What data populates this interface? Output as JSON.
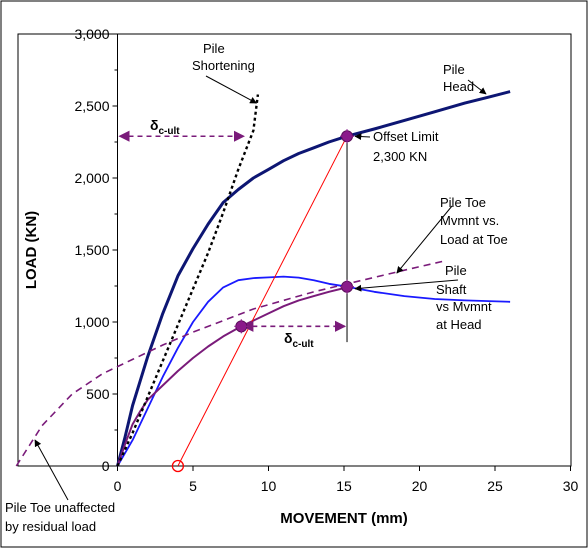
{
  "chart_data": {
    "type": "line",
    "xlabel": "MOVEMENT  (mm)",
    "ylabel": "LOAD  (KN)",
    "xlim": [
      -7,
      30
    ],
    "ylim": [
      0,
      3000
    ],
    "xticks": [
      0,
      5,
      10,
      15,
      20,
      25,
      30
    ],
    "xtick_labels": [
      "0",
      "5",
      "10",
      "15",
      "20",
      "25",
      "30"
    ],
    "yticks": [
      0,
      500,
      1000,
      1500,
      2000,
      2500,
      3000
    ],
    "ytick_labels": [
      "0",
      "500",
      "1,000",
      "1,500",
      "2,000",
      "2,500",
      "3,000"
    ],
    "grid": false,
    "colors": {
      "pile_head": "#0d1673",
      "pile_shaft": "#1a1aff",
      "pile_toe": "#7a1b7a",
      "shortening": "#000000",
      "offset_line": "#ff0000",
      "markers": "#8b1a8b"
    },
    "series": [
      {
        "key": "pile_head",
        "values": [
          [
            0,
            0
          ],
          [
            0.5,
            200
          ],
          [
            1,
            420
          ],
          [
            2,
            760
          ],
          [
            3,
            1060
          ],
          [
            4,
            1320
          ],
          [
            5,
            1510
          ],
          [
            6,
            1680
          ],
          [
            7,
            1830
          ],
          [
            8,
            1920
          ],
          [
            9,
            2000
          ],
          [
            10,
            2060
          ],
          [
            11,
            2120
          ],
          [
            12,
            2170
          ],
          [
            13,
            2210
          ],
          [
            14,
            2250
          ],
          [
            15.2,
            2290
          ],
          [
            17,
            2340
          ],
          [
            19,
            2400
          ],
          [
            21,
            2460
          ],
          [
            23,
            2520
          ],
          [
            24.5,
            2560
          ],
          [
            26,
            2600
          ]
        ]
      },
      {
        "key": "pile_shaft",
        "values": [
          [
            0,
            0
          ],
          [
            1,
            180
          ],
          [
            2,
            400
          ],
          [
            3,
            620
          ],
          [
            4,
            820
          ],
          [
            5,
            1000
          ],
          [
            6,
            1140
          ],
          [
            7,
            1240
          ],
          [
            8,
            1290
          ],
          [
            9,
            1305
          ],
          [
            10,
            1310
          ],
          [
            11,
            1315
          ],
          [
            12,
            1308
          ],
          [
            13,
            1290
          ],
          [
            14,
            1265
          ],
          [
            15.2,
            1245
          ],
          [
            17,
            1210
          ],
          [
            19,
            1180
          ],
          [
            21,
            1160
          ],
          [
            23,
            1150
          ],
          [
            26,
            1140
          ]
        ]
      },
      {
        "key": "pile_toe_head",
        "values": [
          [
            0,
            0
          ],
          [
            0.5,
            150
          ],
          [
            1,
            290
          ],
          [
            1.5,
            380
          ],
          [
            2,
            460
          ],
          [
            3,
            560
          ],
          [
            4,
            660
          ],
          [
            5,
            750
          ],
          [
            6,
            830
          ],
          [
            7,
            900
          ],
          [
            8.2,
            970
          ],
          [
            9,
            1010
          ],
          [
            10,
            1060
          ],
          [
            11,
            1110
          ],
          [
            12,
            1150
          ],
          [
            13,
            1180
          ],
          [
            14,
            1210
          ],
          [
            15.2,
            1240
          ]
        ]
      },
      {
        "key": "pile_toe_load_dashed",
        "values": [
          [
            -6.7,
            0
          ],
          [
            -5,
            280
          ],
          [
            -3,
            500
          ],
          [
            -1,
            640
          ],
          [
            1,
            740
          ],
          [
            3,
            840
          ],
          [
            5,
            930
          ],
          [
            7,
            1010
          ],
          [
            9,
            1090
          ],
          [
            11,
            1150
          ],
          [
            13,
            1210
          ],
          [
            15,
            1260
          ],
          [
            17,
            1310
          ],
          [
            19,
            1360
          ],
          [
            21.5,
            1420
          ]
        ]
      },
      {
        "key": "shortening_dotted",
        "values": [
          [
            0,
            0
          ],
          [
            1,
            230
          ],
          [
            2,
            480
          ],
          [
            3,
            730
          ],
          [
            4,
            980
          ],
          [
            5,
            1230
          ],
          [
            6,
            1480
          ],
          [
            7,
            1760
          ],
          [
            8,
            2060
          ],
          [
            9,
            2330
          ],
          [
            9.3,
            2580
          ]
        ]
      },
      {
        "key": "offset_line",
        "values": [
          [
            4,
            0
          ],
          [
            15.2,
            2290
          ]
        ]
      }
    ],
    "vertical_line": {
      "x": 15.2,
      "y_from": 860,
      "y_to": 2290
    },
    "markers": [
      [
        15.2,
        2290
      ],
      [
        15.2,
        1245
      ],
      [
        8.2,
        970
      ]
    ],
    "open_marker": [
      4,
      0
    ],
    "delta_arrows": [
      {
        "x_from": 0,
        "x_to": 8.5,
        "y": 2290
      },
      {
        "x_from": 8.2,
        "x_to": 15.2,
        "y": 970
      }
    ],
    "annotations": {
      "pile_shortening": [
        "Pile",
        "Shortening"
      ],
      "pile_head": [
        "Pile",
        "Head"
      ],
      "offset_limit": [
        "Offset Limit",
        "2,300 KN"
      ],
      "pile_toe_mvmnt": [
        "Pile Toe",
        "Mvmnt vs.",
        "Load at Toe"
      ],
      "pile_shaft": [
        "Pile",
        "Shaft",
        "vs Mvmnt",
        "at Head"
      ],
      "toe_unaffected": [
        "Pile Toe unaffected",
        "by residual load"
      ],
      "delta_main": "δ",
      "delta_sub": "c-ult"
    }
  }
}
